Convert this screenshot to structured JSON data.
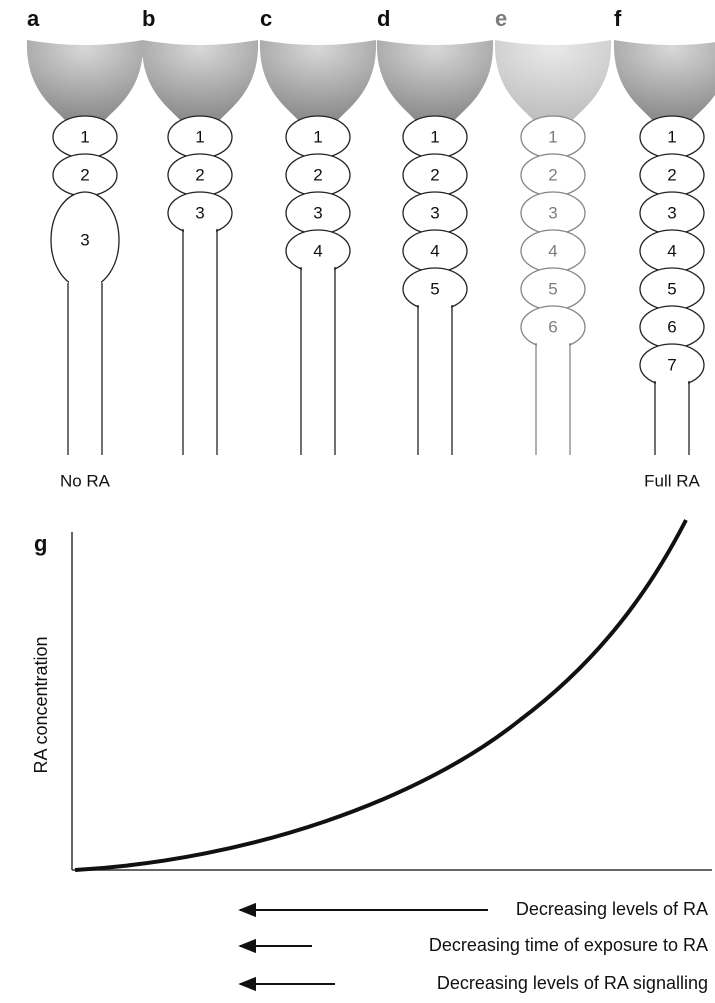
{
  "panels": [
    {
      "letter": "a",
      "segments": [
        "1",
        "2",
        "3"
      ],
      "caption": "No RA"
    },
    {
      "letter": "b",
      "segments": [
        "1",
        "2",
        "3"
      ]
    },
    {
      "letter": "c",
      "segments": [
        "1",
        "2",
        "3",
        "4"
      ]
    },
    {
      "letter": "d",
      "segments": [
        "1",
        "2",
        "3",
        "4",
        "5"
      ]
    },
    {
      "letter": "e",
      "segments": [
        "1",
        "2",
        "3",
        "4",
        "5",
        "6"
      ]
    },
    {
      "letter": "f",
      "segments": [
        "1",
        "2",
        "3",
        "4",
        "5",
        "6",
        "7"
      ],
      "caption": "Full RA"
    }
  ],
  "graph": {
    "letter": "g",
    "y_label": "RA concentration",
    "arrows": [
      "Decreasing levels of RA",
      "Decreasing time of exposure to RA",
      "Decreasing levels of RA signalling"
    ]
  }
}
